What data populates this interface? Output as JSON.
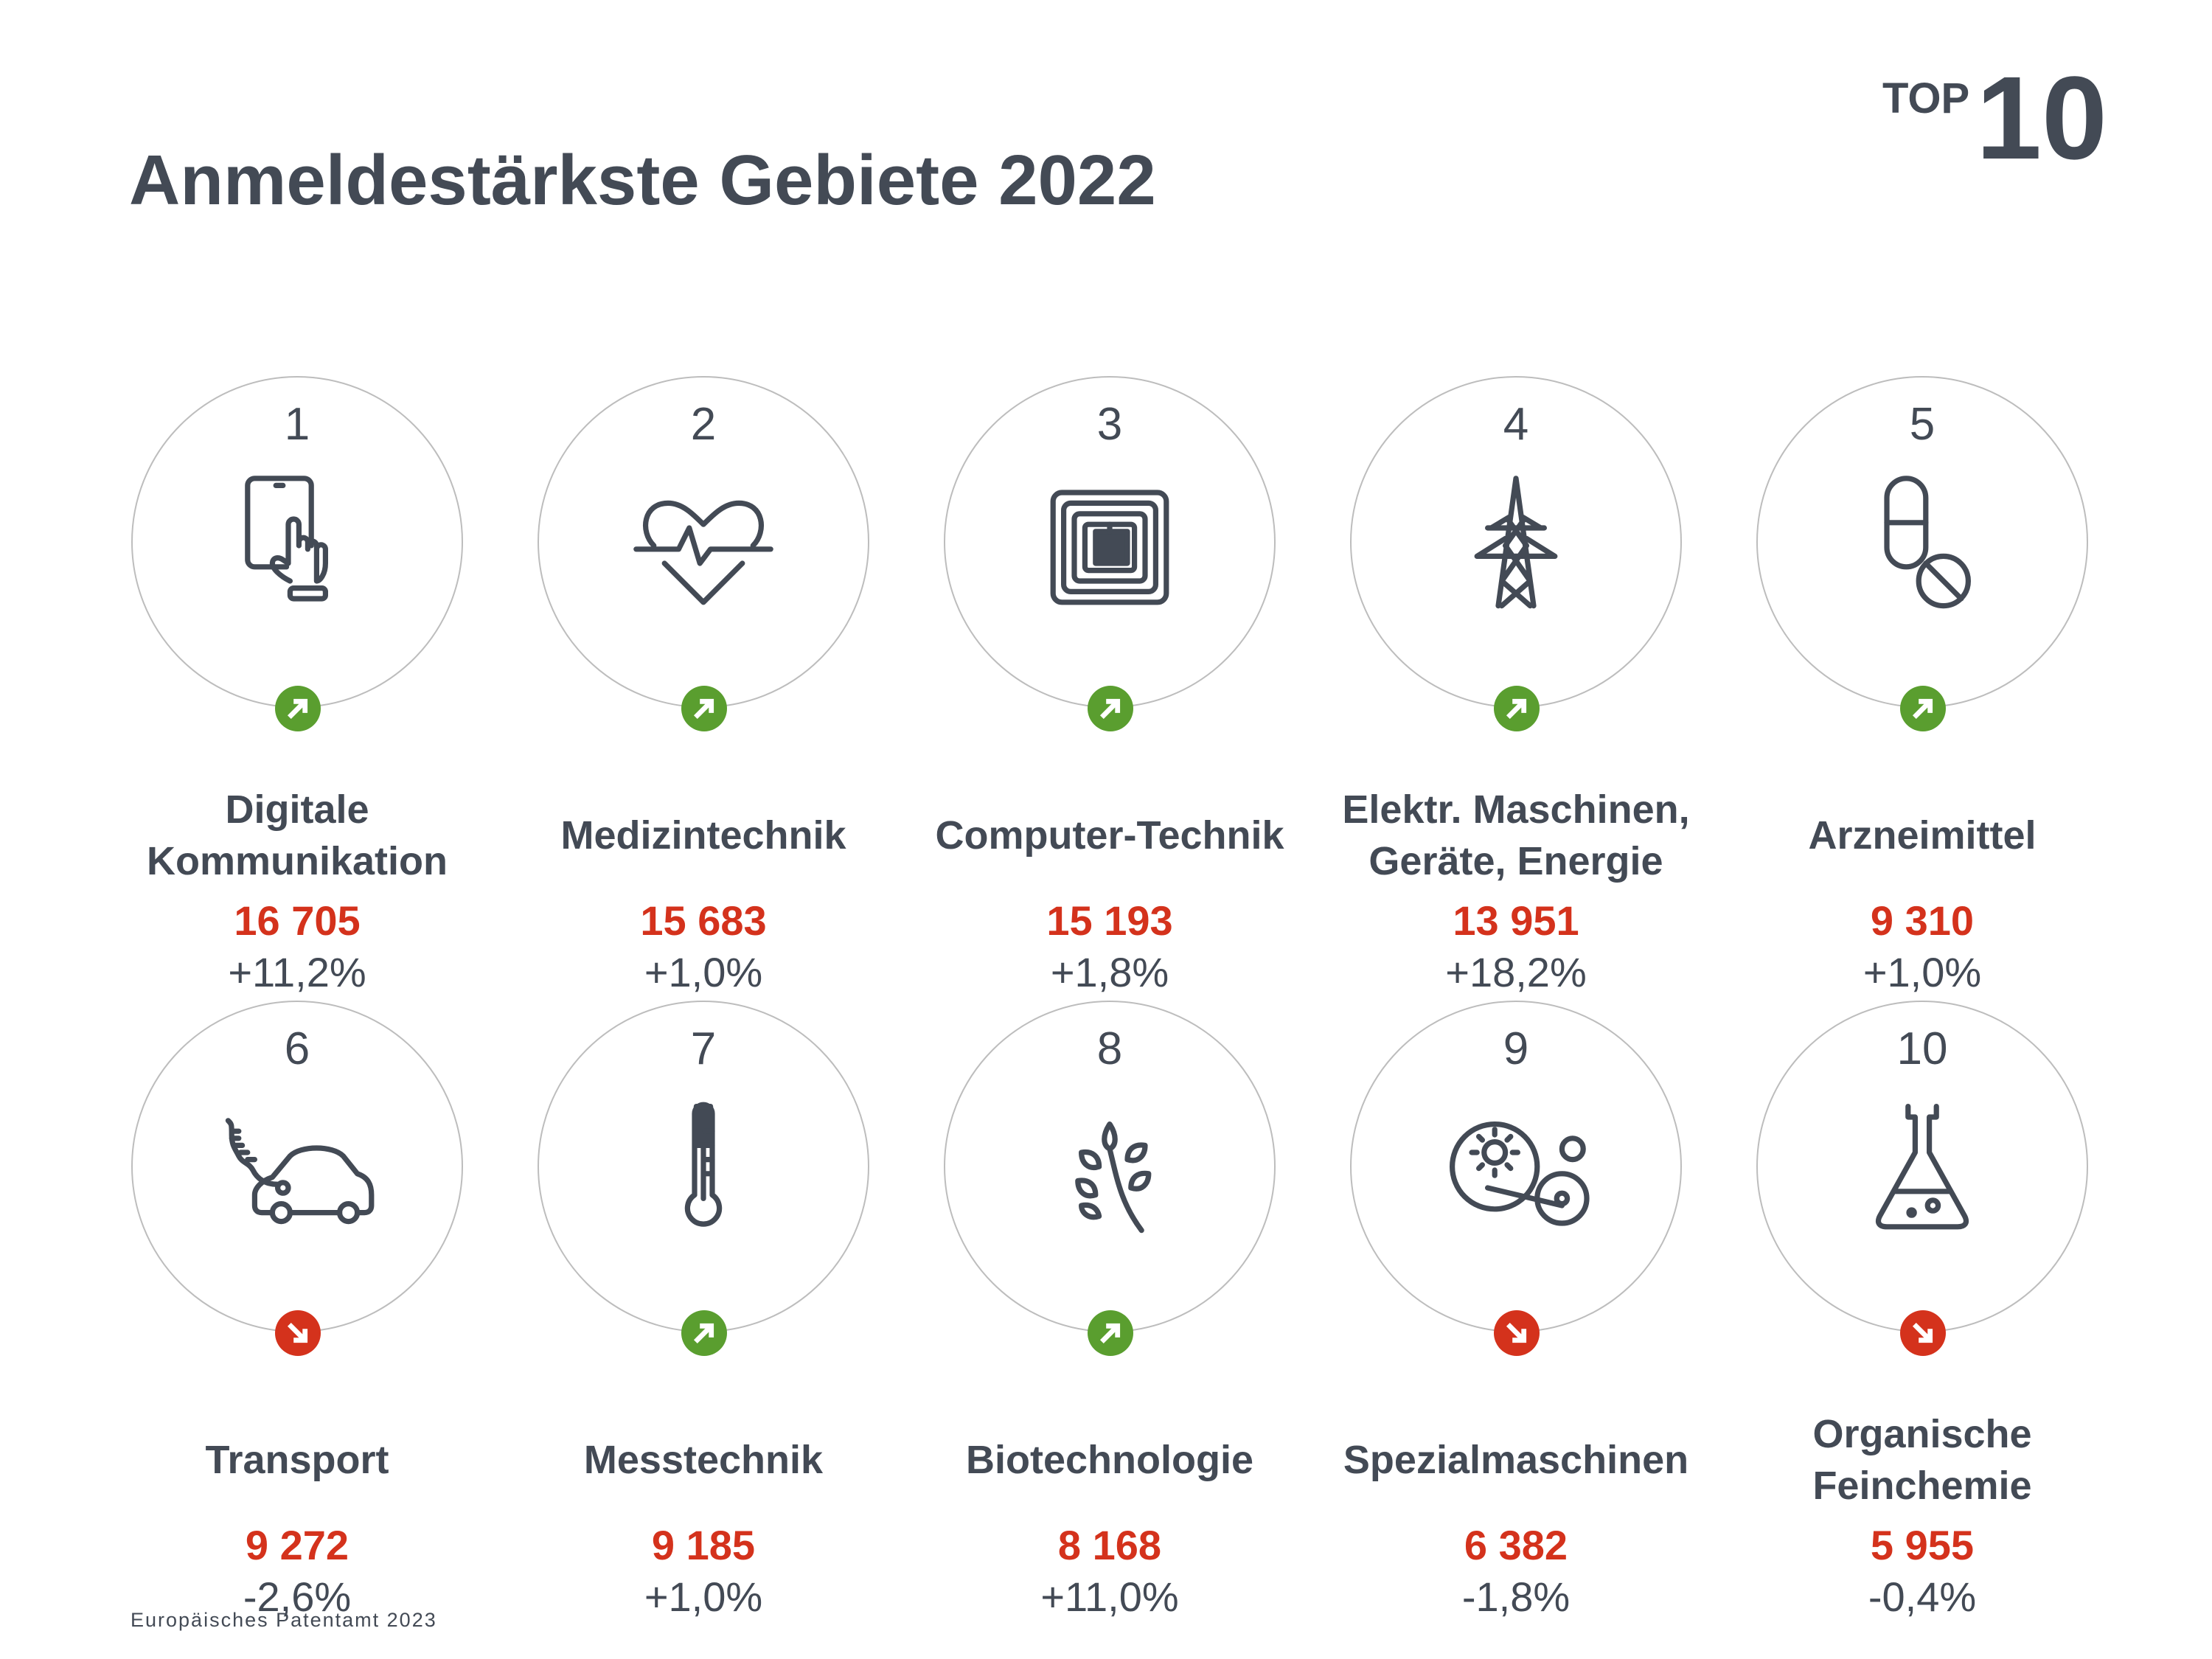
{
  "header": {
    "title": "Anmeldestärkste Gebiete 2022",
    "top_label": "TOP",
    "top_number": "10"
  },
  "footer": {
    "source": "Europäisches Patentamt 2023"
  },
  "colors": {
    "text": "#434a55",
    "value": "#d4321c",
    "up": "#5a9e2f",
    "down": "#d4321c",
    "circle": "#bdbdbd"
  },
  "items": [
    {
      "rank": "1",
      "label": "Digitale Kommunikation",
      "value": "16 705",
      "change": "+11,2%",
      "trend": "up",
      "icon": "tablet-touch-icon"
    },
    {
      "rank": "2",
      "label": "Medizintechnik",
      "value": "15 683",
      "change": "+1,0%",
      "trend": "up",
      "icon": "heartbeat-icon"
    },
    {
      "rank": "3",
      "label": "Computer-Technik",
      "value": "15 193",
      "change": "+1,8%",
      "trend": "up",
      "icon": "chip-icon"
    },
    {
      "rank": "4",
      "label": "Elektr. Maschinen, Geräte, Energie",
      "value": "13 951",
      "change": "+18,2%",
      "trend": "up",
      "icon": "power-pylon-icon"
    },
    {
      "rank": "5",
      "label": "Arzneimittel",
      "value": "9 310",
      "change": "+1,0%",
      "trend": "up",
      "icon": "pill-icon"
    },
    {
      "rank": "6",
      "label": "Transport",
      "value": "9 272",
      "change": "-2,6%",
      "trend": "down",
      "icon": "electric-car-icon"
    },
    {
      "rank": "7",
      "label": "Messtechnik",
      "value": "9 185",
      "change": "+1,0%",
      "trend": "up",
      "icon": "thermometer-icon"
    },
    {
      "rank": "8",
      "label": "Biotechnologie",
      "value": "8 168",
      "change": "+11,0%",
      "trend": "up",
      "icon": "plant-icon"
    },
    {
      "rank": "9",
      "label": "Spezialmaschinen",
      "value": "6 382",
      "change": "-1,8%",
      "trend": "down",
      "icon": "machine-gears-icon"
    },
    {
      "rank": "10",
      "label": "Organische Feinchemie",
      "value": "5 955",
      "change": "-0,4%",
      "trend": "down",
      "icon": "flask-icon"
    }
  ]
}
